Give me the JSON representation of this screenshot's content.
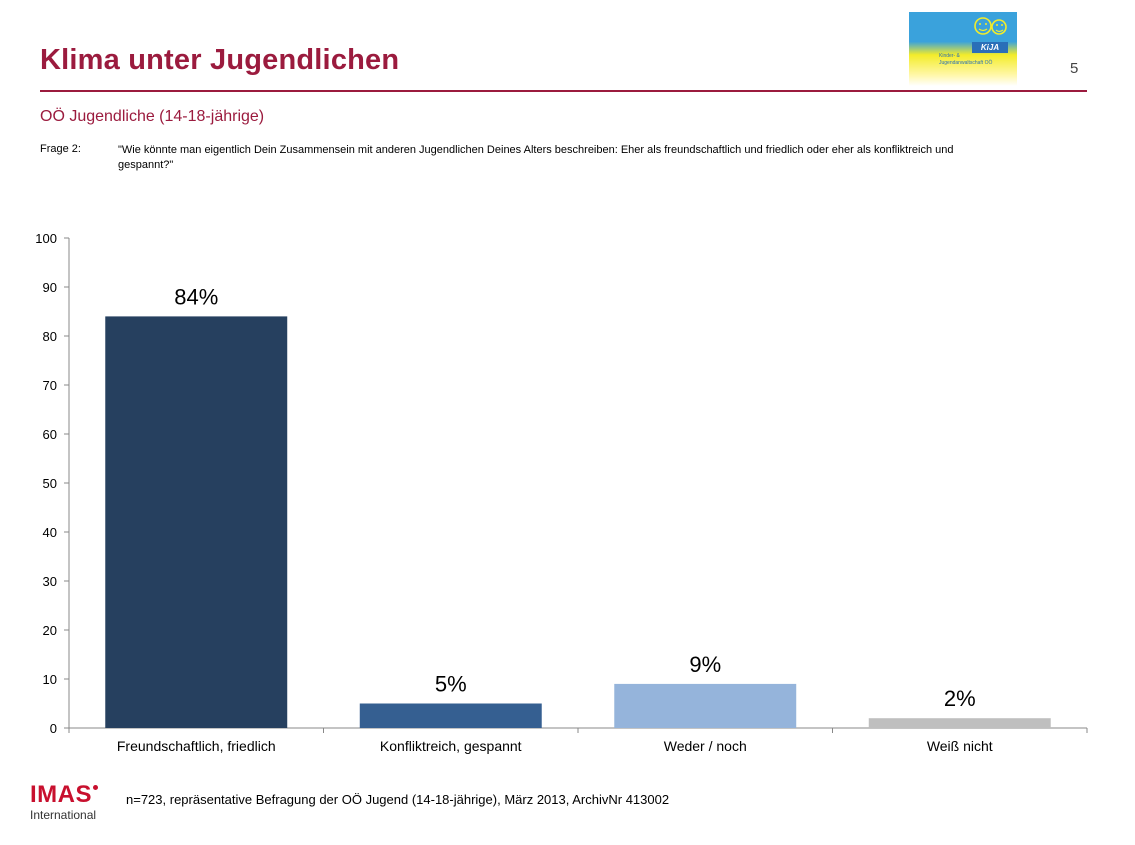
{
  "header": {
    "title": "Klima unter Jugendlichen",
    "page_number": "5",
    "subtitle": "OÖ Jugendliche (14-18-jährige)"
  },
  "logo": {
    "tag": "KiJA",
    "line1": "Kinder- &",
    "line2": "Jugendanwaltschaft OÖ"
  },
  "question": {
    "label": "Frage 2:",
    "text": "\"Wie könnte man eigentlich Dein Zusammensein mit anderen Jugendlichen Deines Alters beschreiben: Eher als freundschaftlich und friedlich oder eher als konfliktreich und gespannt?\""
  },
  "colors": {
    "accent": "#9b1b3e",
    "bar_colors": [
      "#26405f",
      "#355f91",
      "#95b4db",
      "#bfbfbf"
    ]
  },
  "chart_data": {
    "type": "bar",
    "categories": [
      "Freundschaftlich, friedlich",
      "Konfliktreich, gespannt",
      "Weder / noch",
      "Weiß nicht"
    ],
    "values": [
      84,
      5,
      9,
      2
    ],
    "data_labels": [
      "84%",
      "5%",
      "9%",
      "2%"
    ],
    "ylim": [
      0,
      100
    ],
    "yticks": [
      0,
      10,
      20,
      30,
      40,
      50,
      60,
      70,
      80,
      90,
      100
    ],
    "grid": false,
    "legend": "none"
  },
  "footer": {
    "brand": "IMAS",
    "brand_sub": "International",
    "note": "n=723, repräsentative Befragung der OÖ Jugend (14-18-jährige), März 2013, ArchivNr 413002"
  }
}
